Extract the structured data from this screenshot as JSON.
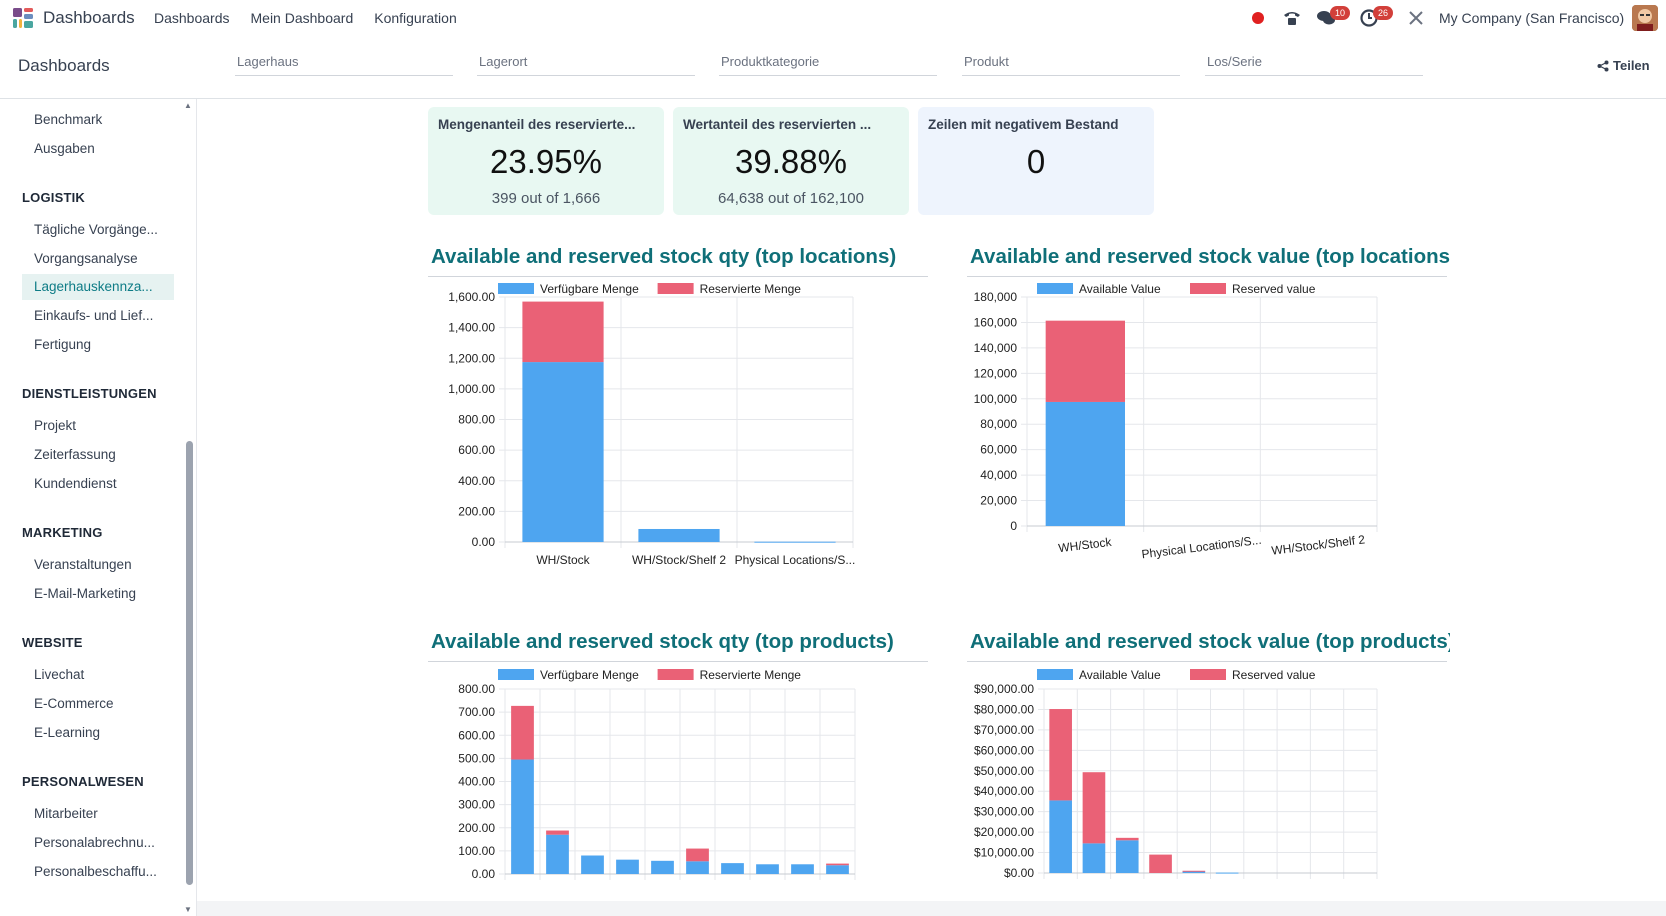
{
  "navbar": {
    "app_name": "Dashboards",
    "menu": [
      "Dashboards",
      "Mein Dashboard",
      "Konfiguration"
    ],
    "messages_count": "10",
    "activities_count": "26",
    "company": "My Company (San Francisco)"
  },
  "control_panel": {
    "title": "Dashboards",
    "filters": [
      "Lagerhaus",
      "Lagerort",
      "Produktkategorie",
      "Produkt",
      "Los/Serie"
    ],
    "share_label": "Teilen"
  },
  "sidebar": {
    "top_items": [
      "Benchmark",
      "Ausgaben"
    ],
    "sections": [
      {
        "title": "LOGISTIK",
        "items": [
          "Tägliche Vorgänge...",
          "Vorgangsanalyse",
          "Lagerhauskennza...",
          "Einkaufs- und Lief...",
          "Fertigung"
        ]
      },
      {
        "title": "DIENSTLEISTUNGEN",
        "items": [
          "Projekt",
          "Zeiterfassung",
          "Kundendienst"
        ]
      },
      {
        "title": "MARKETING",
        "items": [
          "Veranstaltungen",
          "E-Mail-Marketing"
        ]
      },
      {
        "title": "WEBSITE",
        "items": [
          "Livechat",
          "E-Commerce",
          "E-Learning"
        ]
      },
      {
        "title": "PERSONALWESEN",
        "items": [
          "Mitarbeiter",
          "Personalabrechnu...",
          "Personalbeschaffu..."
        ]
      }
    ],
    "active_item": "Lagerhauskennza..."
  },
  "kpis": [
    {
      "title": "Mengenanteil des reservierte...",
      "value": "23.95%",
      "sub": "399 out of 1,666"
    },
    {
      "title": "Wertanteil des reservierten ...",
      "value": "39.88%",
      "sub": "64,638 out of 162,100"
    },
    {
      "title": "Zeilen mit negativem Bestand",
      "value": "0",
      "sub": ""
    }
  ],
  "colors": {
    "available": "#4ea5f0",
    "reserved": "#ea6176",
    "accent": "#0f6f78"
  },
  "chart_data": [
    {
      "type": "bar",
      "title": "Available and reserved stock qty (top locations)",
      "stacked": true,
      "categories": [
        "WH/Stock",
        "WH/Stock/Shelf 2",
        "Physical Locations/S..."
      ],
      "series": [
        {
          "name": "Verfügbare Menge",
          "values": [
            1175,
            85,
            2
          ]
        },
        {
          "name": "Reservierte Menge",
          "values": [
            395,
            0,
            0
          ]
        }
      ],
      "yticks": [
        "0.00",
        "200.00",
        "400.00",
        "600.00",
        "800.00",
        "1,000.00",
        "1,200.00",
        "1,400.00",
        "1,600.00"
      ],
      "ylim": [
        0,
        1600
      ],
      "legend": "top",
      "grid": true
    },
    {
      "type": "bar",
      "title": "Available and reserved stock value (top locations)",
      "stacked": true,
      "categories": [
        "WH/Stock",
        "Physical Locations/S...",
        "WH/Stock/Shelf 2"
      ],
      "series": [
        {
          "name": "Available Value",
          "values": [
            97500,
            0,
            0
          ]
        },
        {
          "name": "Reserved value",
          "values": [
            63900,
            0,
            0
          ]
        }
      ],
      "yticks": [
        "0",
        "20,000",
        "40,000",
        "60,000",
        "80,000",
        "100,000",
        "120,000",
        "140,000",
        "160,000",
        "180,000"
      ],
      "ylim": [
        0,
        180000
      ],
      "legend": "top",
      "grid": true
    },
    {
      "type": "bar",
      "title": "Available and reserved stock qty (top products)",
      "stacked": true,
      "categories": [
        "",
        "",
        "",
        "",
        "",
        "",
        "",
        "",
        "",
        ""
      ],
      "series": [
        {
          "name": "Verfügbare Menge",
          "values": [
            495,
            170,
            80,
            62,
            57,
            55,
            47,
            42,
            42,
            38
          ]
        },
        {
          "name": "Reservierte Menge",
          "values": [
            232,
            18,
            0,
            0,
            0,
            55,
            0,
            0,
            0,
            7
          ]
        }
      ],
      "yticks": [
        "0.00",
        "100.00",
        "200.00",
        "300.00",
        "400.00",
        "500.00",
        "600.00",
        "700.00",
        "800.00"
      ],
      "ylim": [
        0,
        800
      ],
      "legend": "top",
      "grid": true
    },
    {
      "type": "bar",
      "title": "Available and reserved stock value (top products)",
      "stacked": true,
      "categories": [
        "",
        "",
        "",
        "",
        "",
        "",
        "",
        "",
        "",
        ""
      ],
      "series": [
        {
          "name": "Available Value",
          "values": [
            35500,
            14500,
            16000,
            0,
            800,
            200,
            0,
            0,
            0,
            0
          ]
        },
        {
          "name": "Reserved value",
          "values": [
            44700,
            34800,
            1200,
            9000,
            300,
            0,
            0,
            0,
            0,
            0
          ]
        }
      ],
      "yticks": [
        "$0.00",
        "$10,000.00",
        "$20,000.00",
        "$30,000.00",
        "$40,000.00",
        "$50,000.00",
        "$60,000.00",
        "$70,000.00",
        "$80,000.00",
        "$90,000.00"
      ],
      "ylim": [
        0,
        90000
      ],
      "legend": "top",
      "grid": true
    }
  ]
}
